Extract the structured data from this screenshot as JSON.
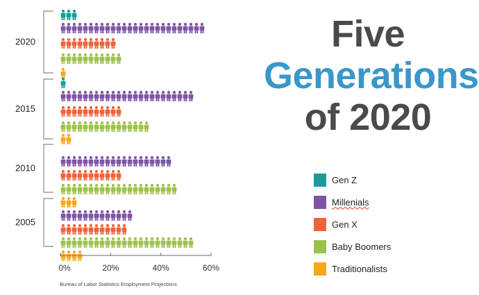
{
  "title": {
    "line1": "Five",
    "line2": "Generations",
    "line3": "of 2020"
  },
  "colors": {
    "title_dark": "#4a4a4a",
    "title_blue": "#3a97c9",
    "axis": "#888888"
  },
  "legend": [
    {
      "label": "Gen Z",
      "color": "#1b9c9a"
    },
    {
      "label": "Millenials",
      "color": "#7e54a6"
    },
    {
      "label": "Gen X",
      "color": "#f0623a"
    },
    {
      "label": "Baby Boomers",
      "color": "#9cc24a"
    },
    {
      "label": "Traditionalists",
      "color": "#f7a71e"
    }
  ],
  "source": "Bureau of Labor Statistics Employment Projections",
  "chart_data": {
    "type": "bar",
    "orientation": "horizontal",
    "mark": "person-icons",
    "categories": [
      "2020",
      "2015",
      "2010",
      "2005"
    ],
    "series": [
      {
        "name": "Gen Z",
        "color": "#1b9c9a",
        "values": [
          7,
          1,
          0,
          0
        ]
      },
      {
        "name": "Millenials",
        "color": "#7e54a6",
        "values": [
          58,
          54,
          44,
          30
        ]
      },
      {
        "name": "Gen X",
        "color": "#f0623a",
        "values": [
          22,
          24,
          24,
          26
        ]
      },
      {
        "name": "Baby Boomers",
        "color": "#9cc24a",
        "values": [
          24,
          36,
          46,
          54
        ]
      },
      {
        "name": "Traditionalists",
        "color": "#f7a71e",
        "values": [
          1,
          4,
          6,
          10
        ]
      }
    ],
    "xlim": [
      0,
      60
    ],
    "xticks": [
      0,
      20,
      40,
      60
    ],
    "xtick_labels": [
      "0%",
      "20%",
      "40%",
      "60%"
    ],
    "xlabel": "",
    "ylabel": ""
  }
}
